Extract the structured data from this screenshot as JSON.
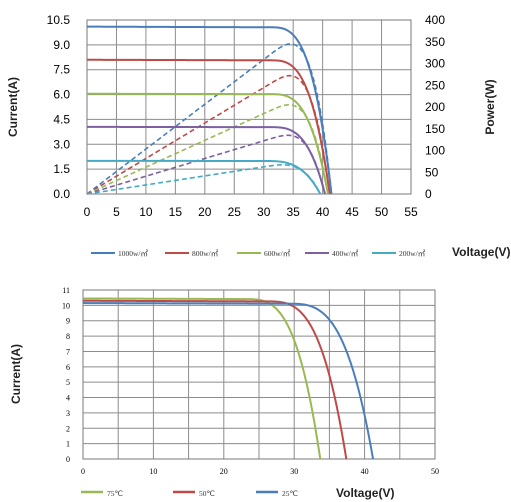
{
  "chart_data": [
    {
      "type": "line",
      "x": {
        "label": "Voltage(V)",
        "lim": [
          0,
          55
        ],
        "ticks": [
          0,
          5,
          10,
          15,
          20,
          25,
          30,
          35,
          40,
          45,
          50,
          55
        ]
      },
      "y_left": {
        "label": "Current(A)",
        "lim": [
          0,
          10.5
        ],
        "ticks": [
          "0.0",
          "1.5",
          "3.0",
          "4.5",
          "6.0",
          "7.5",
          "9.0",
          "10.5"
        ]
      },
      "y_right": {
        "label": "Power(W)",
        "lim": [
          0,
          400
        ],
        "ticks": [
          0,
          50,
          100,
          150,
          200,
          250,
          300,
          350,
          400
        ]
      },
      "grid": true,
      "legend_position": "bottom",
      "series": [
        {
          "name": "1000w/㎡",
          "color": "#4A7EBB",
          "isc": 10.1,
          "voc": 41.5,
          "vknee": 31,
          "vmp": 35.5,
          "pmax": 345
        },
        {
          "name": "800w/㎡",
          "color": "#BE4B48",
          "isc": 8.1,
          "voc": 41.2,
          "vknee": 31,
          "vmp": 35.5,
          "pmax": 272
        },
        {
          "name": "600w/㎡",
          "color": "#98B954",
          "isc": 6.05,
          "voc": 40.9,
          "vknee": 31,
          "vmp": 36,
          "pmax": 205
        },
        {
          "name": "400w/㎡",
          "color": "#7D60A0",
          "isc": 4.05,
          "voc": 40.4,
          "vknee": 31,
          "vmp": 35.5,
          "pmax": 135
        },
        {
          "name": "200w/㎡",
          "color": "#46AAC5",
          "isc": 2.0,
          "voc": 39.6,
          "vknee": 30,
          "vmp": 35,
          "pmax": 67
        }
      ]
    },
    {
      "type": "line",
      "x": {
        "label": "Voltage(V)",
        "lim": [
          0,
          50
        ],
        "ticks": [
          0,
          10,
          20,
          30,
          40,
          50
        ]
      },
      "y": {
        "label": "Current(A)",
        "lim": [
          0,
          11
        ],
        "ticks": [
          0,
          1,
          2,
          3,
          4,
          5,
          6,
          7,
          8,
          9,
          10,
          11
        ]
      },
      "grid": true,
      "legend_position": "bottom",
      "series": [
        {
          "name": "75℃",
          "color": "#98B954",
          "isc": 10.45,
          "voc": 33.7,
          "vknee": 23
        },
        {
          "name": "50℃",
          "color": "#BE4B48",
          "isc": 10.3,
          "voc": 37.4,
          "vknee": 26
        },
        {
          "name": "25℃",
          "color": "#4A7EBB",
          "isc": 10.15,
          "voc": 41.2,
          "vknee": 29
        }
      ]
    }
  ]
}
